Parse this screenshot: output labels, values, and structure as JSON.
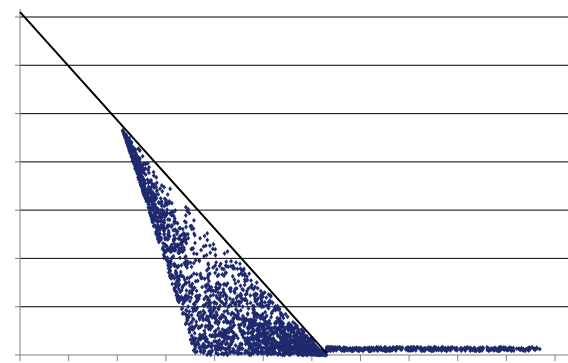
{
  "chart_data": {
    "type": "scatter",
    "title": "",
    "xlabel": "",
    "ylabel": "",
    "xlim": [
      0,
      11
    ],
    "ylim": [
      0,
      7
    ],
    "grid": {
      "horizontal": true,
      "vertical": false
    },
    "xticks": [
      0,
      1,
      2,
      3,
      4,
      5,
      6,
      7,
      8,
      9,
      10,
      11
    ],
    "yticks": [
      0,
      1,
      2,
      3,
      4,
      5,
      6,
      7
    ],
    "legend": "none",
    "colors": {
      "marker": "#1f2a6e",
      "reference_line": "#000000",
      "grid": "#000000",
      "axis": "#7f7f7f"
    },
    "reference_line": {
      "x": [
        0,
        6.3
      ],
      "y": [
        7,
        0
      ]
    },
    "series": [
      {
        "marker": "diamond",
        "bands": [
          {
            "x_range": [
              2.0,
              6.3
            ],
            "y_max": "line",
            "y_min_ratio": 0.0
          },
          {
            "x_range": [
              6.3,
              10.7
            ],
            "y": [
              0,
              0.08
            ]
          }
        ],
        "approximate_point_count": 2600
      }
    ]
  }
}
